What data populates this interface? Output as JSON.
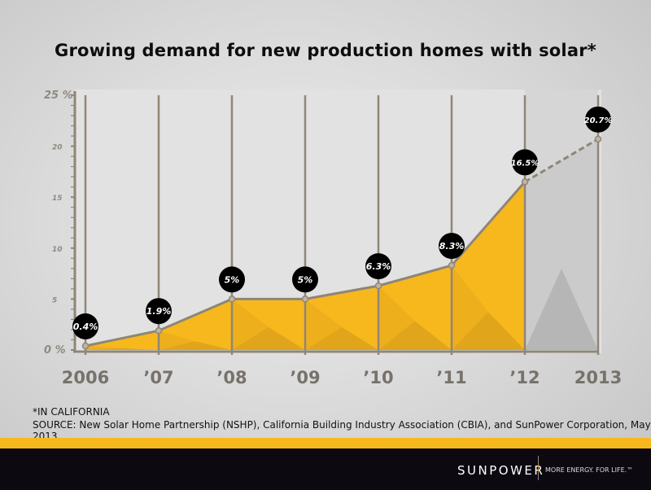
{
  "chart_data": {
    "type": "area",
    "title": "Growing demand for new production homes with solar*",
    "xlabel": "",
    "ylabel": "",
    "categories": [
      "2006",
      "’07",
      "’08",
      "’09",
      "’10",
      "’11",
      "’12",
      "2013"
    ],
    "values": [
      0.4,
      1.9,
      5,
      5,
      6.3,
      8.3,
      16.5,
      20.7
    ],
    "data_labels": [
      "0.4%",
      "1.9%",
      "5%",
      "5%",
      "6.3%",
      "8.3%",
      "16.5%",
      "20.7%"
    ],
    "projected_from_index": 6,
    "ylim": [
      0,
      25
    ],
    "yticks": [
      0,
      5,
      10,
      15,
      20,
      25
    ],
    "ytick_labels": [
      "0 %",
      "5",
      "10",
      "15",
      "20",
      "25 %"
    ],
    "grid": true,
    "colors": {
      "fill": "#f7b81e",
      "fill_dark": "#d79c1a",
      "line": "#8f8677",
      "label_bg": "#000000",
      "projection": "#b8b8b8"
    }
  },
  "notes": {
    "footnote": "*IN CALIFORNIA",
    "source": "SOURCE: New Solar Home Partnership (NSHP), California Building Industry Association (CBIA), and SunPower Corporation, May 2013"
  },
  "footer": {
    "brand": "SUNPOWER",
    "tagline": "MORE ENERGY. FOR LIFE.™"
  }
}
